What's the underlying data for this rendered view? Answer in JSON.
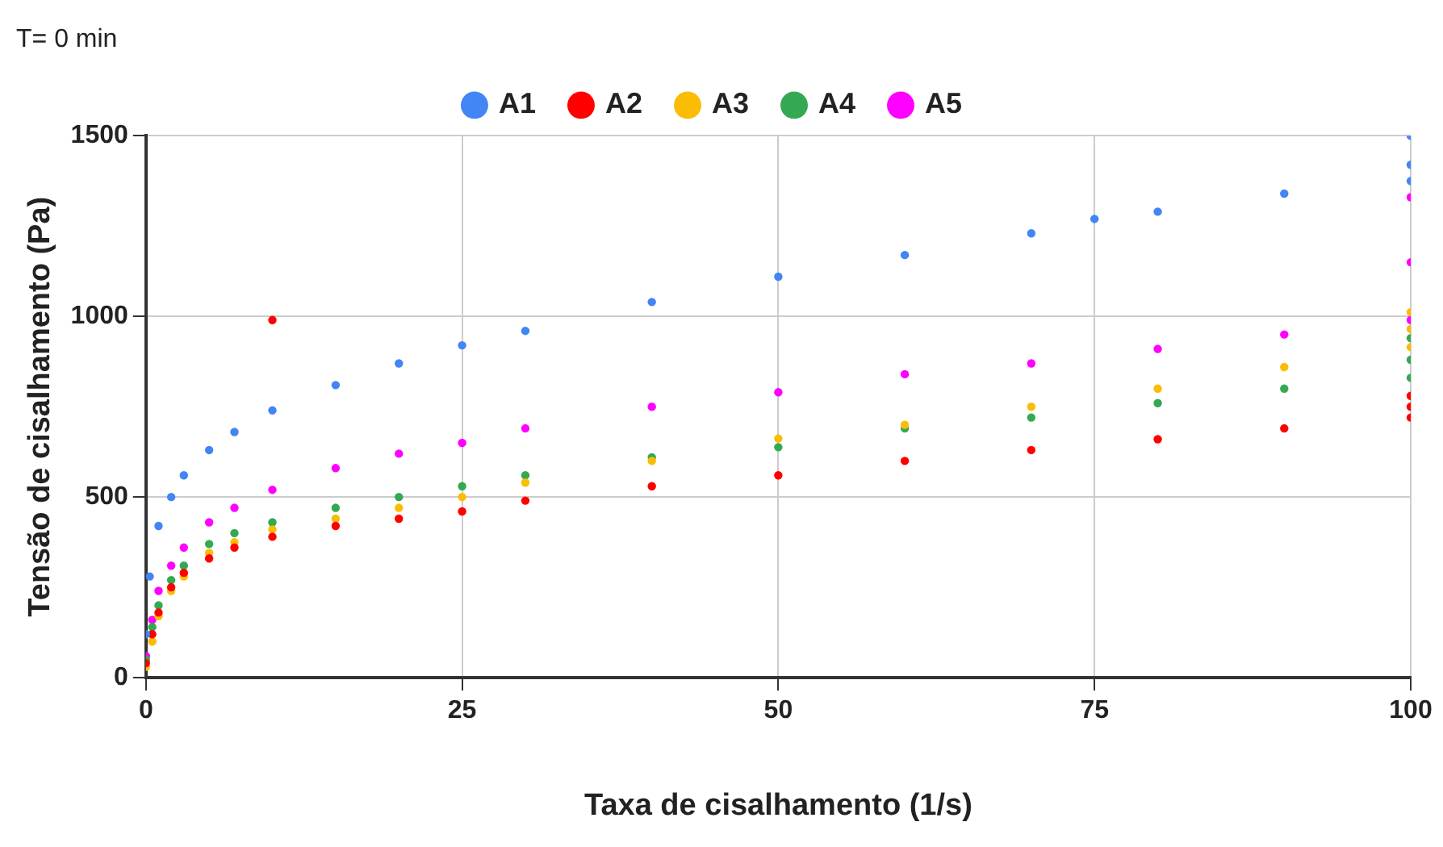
{
  "chart_data": {
    "type": "scatter",
    "title": "T= 0 min",
    "xlabel": "Taxa de cisalhamento (1/s)",
    "ylabel": "Tensão de cisalhamento (Pa)",
    "xlim": [
      0,
      100
    ],
    "xticks": [
      0,
      25,
      50,
      75,
      100
    ],
    "ylim": [
      0,
      1500
    ],
    "yticks": [
      0,
      500,
      1000,
      1500
    ],
    "grid": true,
    "legend": "top",
    "marker": "circle",
    "series": [
      {
        "name": "A1",
        "color": "#4285f4",
        "x": [
          0,
          0.3,
          1,
          2,
          3,
          5,
          7,
          10,
          15,
          20,
          25,
          30,
          40,
          50,
          60,
          70,
          75,
          80,
          90,
          100,
          100,
          100
        ],
        "values": [
          120,
          280,
          420,
          500,
          560,
          630,
          680,
          740,
          810,
          870,
          920,
          960,
          1040,
          1110,
          1170,
          1230,
          1270,
          1290,
          1340,
          1375,
          1420,
          1500
        ]
      },
      {
        "name": "A2",
        "color": "#ff0000",
        "x": [
          0,
          0.5,
          1,
          2,
          3,
          5,
          7,
          10,
          10,
          15,
          20,
          25,
          30,
          40,
          50,
          60,
          70,
          80,
          90,
          100,
          100,
          100
        ],
        "values": [
          40,
          120,
          180,
          250,
          290,
          330,
          360,
          390,
          990,
          420,
          440,
          460,
          490,
          530,
          560,
          600,
          630,
          660,
          690,
          720,
          750,
          780
        ]
      },
      {
        "name": "A3",
        "color": "#fbbc04",
        "x": [
          0,
          0.5,
          1,
          2,
          3,
          5,
          7,
          10,
          15,
          20,
          25,
          30,
          40,
          50,
          60,
          70,
          80,
          90,
          100,
          100,
          100
        ],
        "values": [
          30,
          100,
          170,
          240,
          280,
          345,
          375,
          410,
          440,
          470,
          500,
          540,
          600,
          662,
          700,
          750,
          800,
          860,
          915,
          965,
          1012
        ]
      },
      {
        "name": "A4",
        "color": "#34a853",
        "x": [
          0,
          0.5,
          1,
          2,
          3,
          5,
          7,
          10,
          15,
          20,
          25,
          30,
          40,
          50,
          60,
          70,
          80,
          90,
          100,
          100,
          100
        ],
        "values": [
          50,
          140,
          200,
          270,
          310,
          370,
          400,
          430,
          470,
          500,
          530,
          560,
          610,
          638,
          690,
          720,
          760,
          800,
          830,
          880,
          940
        ]
      },
      {
        "name": "A5",
        "color": "#ff00ff",
        "x": [
          0,
          0.5,
          1,
          2,
          3,
          5,
          7,
          10,
          15,
          20,
          25,
          30,
          40,
          50,
          60,
          70,
          80,
          90,
          100,
          100,
          100
        ],
        "values": [
          60,
          160,
          240,
          310,
          360,
          430,
          470,
          520,
          580,
          620,
          650,
          690,
          750,
          790,
          840,
          870,
          910,
          950,
          990,
          1150,
          1330
        ]
      }
    ]
  }
}
